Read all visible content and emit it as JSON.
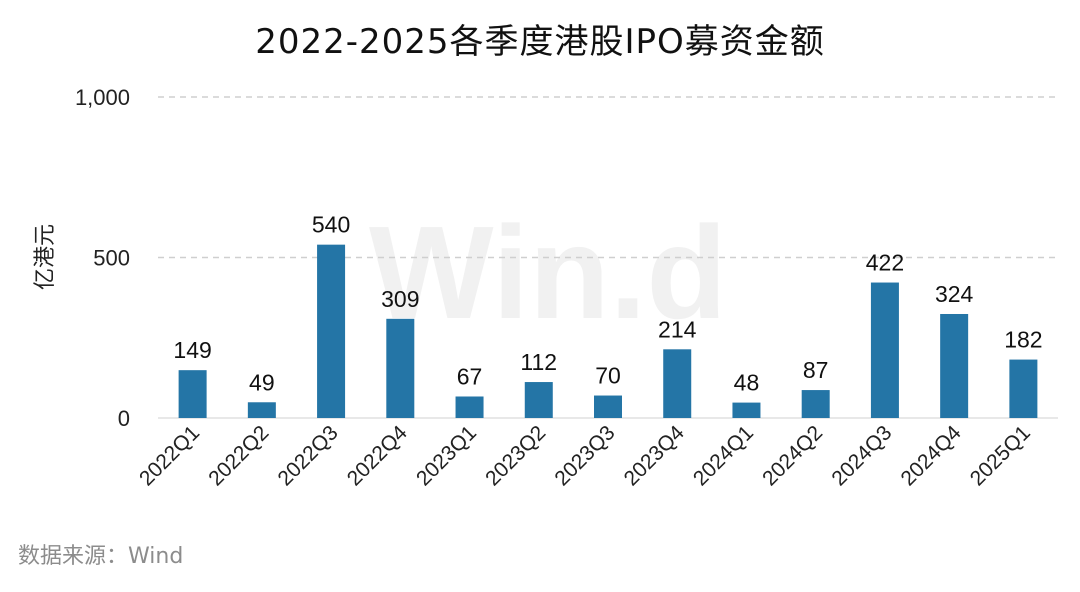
{
  "chart_data": {
    "type": "bar",
    "title": "2022-2025各季度港股IPO募资金额",
    "ylabel": "亿港元",
    "xlabel": "",
    "ylim": [
      0,
      1000
    ],
    "yticks": [
      "0",
      "500",
      "1,000"
    ],
    "ytick_values": [
      0,
      500,
      1000
    ],
    "grid": true,
    "bar_color": "#2475a6",
    "categories": [
      "2022Q1",
      "2022Q2",
      "2022Q3",
      "2022Q4",
      "2023Q1",
      "2023Q2",
      "2023Q3",
      "2023Q4",
      "2024Q1",
      "2024Q2",
      "2024Q3",
      "2024Q4",
      "2025Q1"
    ],
    "values": [
      149,
      49,
      540,
      309,
      67,
      112,
      70,
      214,
      48,
      87,
      422,
      324,
      182
    ],
    "watermark": "Win.d"
  },
  "source": "数据来源：Wind"
}
